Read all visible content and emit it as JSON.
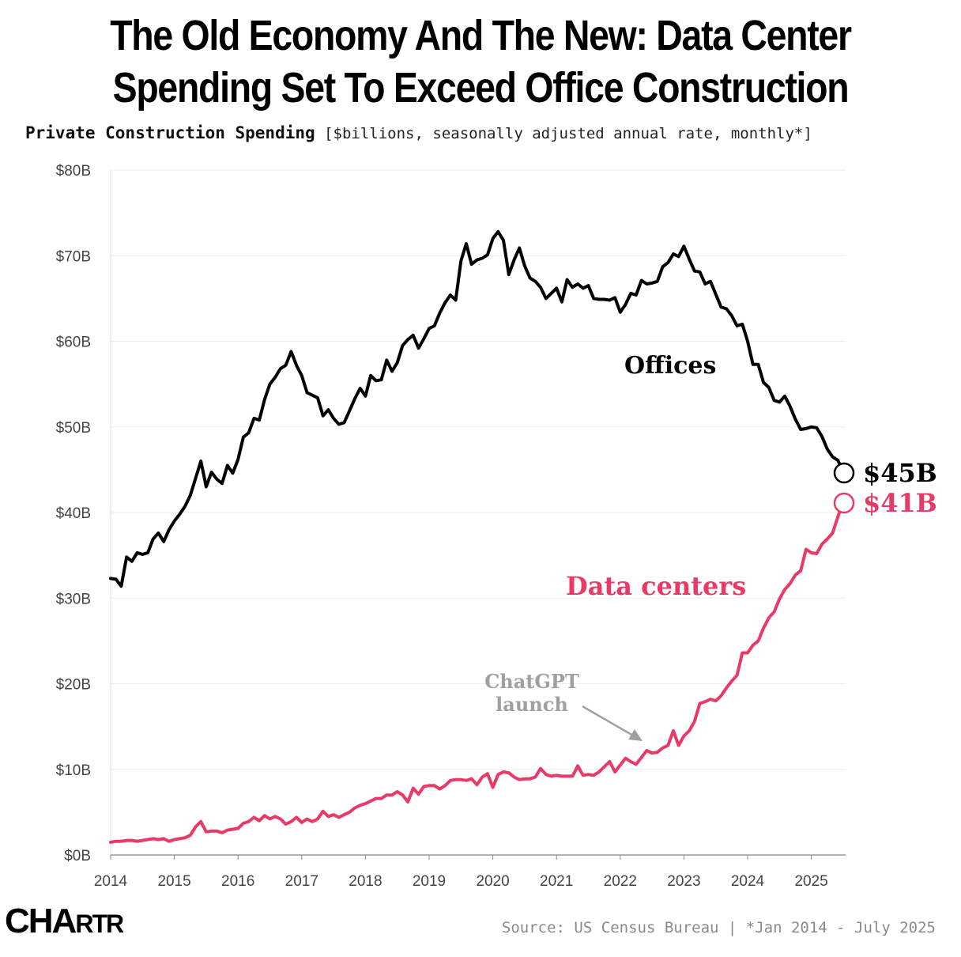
{
  "title_line1": "The Old Economy And The New: Data Center",
  "title_line2": "Spending Set To Exceed Office Construction",
  "subtitle_bold": "Private Construction Spending",
  "subtitle_rest": "[$billions, seasonally adjusted annual rate, monthly*]",
  "source": "Source: US Census Bureau | *Jan 2014 - July 2025",
  "logo": {
    "big": "CHA",
    "small": "RTR"
  },
  "colors": {
    "offices": "#000000",
    "data_centers": "#e83a66",
    "annotation": "#a0a0a0",
    "grid": "#eeeeee"
  },
  "annotation": {
    "line1": "ChatGPT",
    "line2": "launch"
  },
  "chart_data": {
    "type": "line",
    "title": "The Old Economy And The New: Data Center Spending Set To Exceed Office Construction",
    "subtitle": "Private Construction Spending [$billions, seasonally adjusted annual rate, monthly*]",
    "ylim": [
      0,
      80
    ],
    "yticks": [
      "$0B",
      "$10B",
      "$20B",
      "$30B",
      "$40B",
      "$50B",
      "$60B",
      "$70B",
      "$80B"
    ],
    "xticks": [
      "2014",
      "2015",
      "2016",
      "2017",
      "2018",
      "2019",
      "2020",
      "2021",
      "2022",
      "2023",
      "2024",
      "2025"
    ],
    "x_start": "2014-01",
    "x_end": "2025-07",
    "grid": true,
    "series": [
      {
        "name": "Offices",
        "end_label": "$45B",
        "values": [
          32.3,
          32.2,
          31.4,
          34.8,
          34.3,
          35.3,
          35.1,
          35.3,
          36.9,
          37.6,
          36.6,
          38.0,
          39.0,
          39.8,
          40.7,
          42.0,
          44.0,
          46.0,
          43.0,
          44.7,
          43.9,
          43.4,
          45.5,
          44.6,
          46.2,
          48.8,
          49.3,
          51.0,
          50.8,
          53.2,
          55.0,
          55.8,
          56.8,
          57.2,
          58.8,
          57.2,
          56.0,
          54.0,
          53.7,
          53.4,
          51.3,
          52.0,
          51.0,
          50.3,
          50.5,
          51.9,
          53.3,
          54.5,
          53.6,
          56.0,
          55.4,
          55.5,
          57.8,
          56.5,
          57.5,
          59.5,
          60.2,
          60.7,
          59.2,
          60.3,
          61.5,
          61.8,
          63.3,
          64.5,
          65.4,
          64.8,
          69.4,
          71.4,
          69.0,
          69.5,
          69.7,
          70.1,
          72.0,
          72.8,
          71.8,
          67.8,
          69.5,
          70.9,
          68.8,
          67.4,
          67.0,
          66.3,
          65.0,
          65.6,
          66.2,
          64.6,
          67.2,
          66.3,
          66.7,
          66.2,
          66.5,
          65.0,
          64.9,
          64.9,
          64.8,
          65.1,
          63.4,
          64.3,
          65.6,
          65.4,
          67.1,
          66.7,
          66.8,
          67.0,
          68.7,
          69.2,
          70.2,
          69.9,
          71.1,
          69.6,
          68.2,
          68.1,
          66.7,
          67.0,
          65.5,
          64.0,
          63.8,
          63.0,
          61.8,
          62.0,
          60.0,
          57.3,
          57.3,
          55.2,
          54.6,
          53.1,
          52.9,
          53.6,
          52.4,
          50.9,
          49.7,
          49.8,
          50.0,
          49.9,
          48.9,
          47.4,
          46.5,
          46.1,
          44.8
        ]
      },
      {
        "name": "Data centers",
        "end_label": "$41B",
        "values": [
          1.5,
          1.6,
          1.6,
          1.7,
          1.7,
          1.6,
          1.7,
          1.8,
          1.9,
          1.8,
          1.9,
          1.6,
          1.8,
          1.9,
          2.0,
          2.3,
          3.3,
          3.9,
          2.7,
          2.8,
          2.8,
          2.6,
          2.9,
          3.0,
          3.1,
          3.7,
          3.9,
          4.4,
          4.0,
          4.6,
          4.2,
          4.5,
          4.2,
          3.6,
          3.9,
          4.4,
          3.8,
          4.2,
          3.9,
          4.2,
          5.1,
          4.5,
          4.7,
          4.4,
          4.7,
          5.0,
          5.5,
          5.8,
          6.0,
          6.3,
          6.6,
          6.6,
          7.0,
          7.0,
          7.4,
          7.0,
          6.2,
          7.8,
          7.1,
          8.0,
          8.1,
          8.1,
          7.7,
          8.1,
          8.7,
          8.8,
          8.8,
          8.7,
          8.9,
          8.2,
          9.1,
          9.5,
          7.9,
          9.4,
          9.7,
          9.6,
          9.1,
          8.8,
          8.9,
          8.9,
          9.1,
          10.1,
          9.4,
          9.2,
          9.3,
          9.2,
          9.2,
          9.2,
          10.4,
          9.3,
          9.4,
          9.3,
          9.7,
          10.3,
          10.9,
          9.7,
          10.5,
          11.3,
          10.9,
          10.6,
          11.4,
          12.2,
          11.9,
          12.0,
          12.5,
          12.8,
          14.5,
          12.8,
          13.9,
          14.5,
          15.6,
          17.7,
          17.9,
          18.2,
          18.0,
          18.6,
          19.5,
          20.3,
          21.0,
          23.6,
          23.6,
          24.5,
          25.0,
          26.5,
          27.7,
          28.4,
          29.9,
          31.0,
          31.7,
          32.7,
          33.2,
          35.7,
          35.3,
          35.2,
          36.3,
          36.9,
          37.6,
          39.5,
          41.2
        ]
      }
    ],
    "annotations": [
      {
        "text": "ChatGPT launch",
        "x": "2022-11"
      }
    ]
  }
}
